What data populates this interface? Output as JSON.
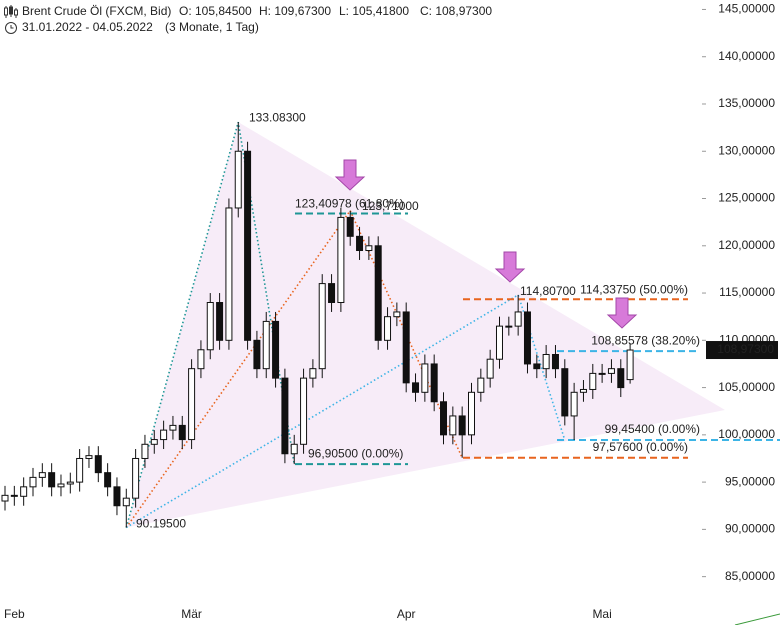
{
  "chart_data": {
    "type": "candlestick",
    "title": "Brent Crude Öl (FXCM, Bid)",
    "ohlc_header": [
      "O: 105,84500",
      "H: 109,67300",
      "L: 105,41800",
      "C: 108,97300"
    ],
    "date_range": "31.01.2022 - 04.05.2022",
    "period": "(3 Monate, 1 Tag)",
    "categories": [
      null,
      "Feb",
      null,
      null,
      null,
      null,
      null,
      null,
      null,
      null,
      null,
      null,
      null,
      null,
      null,
      null,
      null,
      null,
      null,
      null,
      "Mär",
      null,
      null,
      null,
      null,
      null,
      null,
      null,
      null,
      null,
      null,
      null,
      null,
      null,
      null,
      null,
      null,
      null,
      null,
      null,
      null,
      null,
      null,
      "Apr",
      null,
      null,
      null,
      null,
      null,
      null,
      null,
      null,
      null,
      null,
      null,
      null,
      null,
      null,
      null,
      null,
      null,
      null,
      null,
      null,
      "Mai",
      null,
      null,
      null
    ],
    "open": [
      93.0,
      93.6,
      93.5,
      94.5,
      95.5,
      96,
      94.5,
      94.8,
      95,
      97.5,
      97.8,
      96,
      94.5,
      92.5,
      93.3,
      97.5,
      99,
      99.5,
      100.5,
      101,
      99.5,
      107,
      109,
      114,
      110,
      124,
      130,
      110,
      107,
      112,
      106,
      98,
      99,
      106,
      107,
      116,
      114,
      123,
      121,
      119.5,
      120,
      110,
      112.5,
      113,
      105.5,
      104.5,
      107.5,
      103.5,
      100,
      102,
      100,
      104.5,
      106,
      108,
      111.5,
      111.5,
      113,
      107.5,
      107,
      108.5,
      107,
      102,
      104.5,
      104.8,
      106.5,
      106.5,
      107,
      105.845
    ],
    "high": [
      94.6,
      94.6,
      95.5,
      96.5,
      97,
      97,
      95.8,
      96,
      98.5,
      98.8,
      98.8,
      97,
      95.5,
      94.3,
      98.5,
      100,
      100.5,
      101.5,
      102,
      102,
      108,
      110,
      115,
      115,
      125,
      133.083,
      131,
      111,
      113,
      113,
      107,
      100,
      107,
      108,
      117,
      117,
      124,
      123.71,
      122,
      121,
      121,
      113.5,
      114,
      114,
      106.5,
      108.5,
      108.5,
      104.5,
      103,
      103,
      105.5,
      107,
      109,
      112.5,
      112.5,
      114.807,
      114,
      108.5,
      109.5,
      109.5,
      108,
      105.5,
      105.8,
      107.5,
      107.5,
      108,
      108,
      109.673
    ],
    "low": [
      92,
      92.5,
      92.5,
      93.5,
      94.5,
      93.5,
      93.5,
      93.8,
      94,
      96.5,
      95,
      93.5,
      91.5,
      90.195,
      92.3,
      96.5,
      98,
      98.5,
      99.5,
      98.5,
      98.5,
      106,
      108,
      109,
      109,
      123,
      109,
      106,
      106,
      105,
      97,
      96.905,
      98,
      105,
      106,
      113,
      113,
      120,
      118.5,
      118.5,
      109,
      109,
      111.5,
      104.5,
      103.5,
      103.5,
      102.5,
      99,
      99,
      97.576,
      99,
      103.5,
      105,
      107,
      110.5,
      110.5,
      106.5,
      106,
      106,
      106,
      101,
      99.454,
      103.5,
      103.8,
      105.5,
      105.5,
      104,
      105.418
    ],
    "close": [
      93.6,
      93.5,
      94.5,
      95.5,
      96,
      94.5,
      94.8,
      95,
      97.5,
      97.8,
      96,
      94.5,
      92.5,
      93.3,
      97.5,
      99,
      99.5,
      100.5,
      101,
      99.5,
      107,
      109,
      114,
      110,
      124,
      130,
      110,
      107,
      112,
      106,
      98,
      99,
      106,
      107,
      116,
      114,
      123,
      121,
      119.5,
      120,
      110,
      112.5,
      113,
      105.5,
      104.5,
      107.5,
      103.5,
      100,
      102,
      100,
      104.5,
      106,
      108,
      111.5,
      111.5,
      113,
      107.5,
      107,
      108.5,
      107,
      102,
      104.5,
      104.8,
      106.5,
      106.5,
      107,
      105,
      108.973
    ],
    "last_label": "108,97300",
    "up_color": "#ffffff",
    "down_color": "#111111",
    "ylim": [
      82,
      146
    ],
    "yticks": [
      {
        "value": 85,
        "label": "85,00000"
      },
      {
        "value": 90,
        "label": "90,00000"
      },
      {
        "value": 95,
        "label": "95,00000"
      },
      {
        "value": 100,
        "label": "100,00000"
      },
      {
        "value": 105,
        "label": "105,00000"
      },
      {
        "value": 110,
        "label": "110,00000"
      },
      {
        "value": 115,
        "label": "115,00000"
      },
      {
        "value": 120,
        "label": "120,00000"
      },
      {
        "value": 125,
        "label": "125,00000"
      },
      {
        "value": 130,
        "label": "130,00000"
      },
      {
        "value": 135,
        "label": "135,00000"
      },
      {
        "value": 140,
        "label": "140,00000"
      },
      {
        "value": 145,
        "label": "145,00000"
      }
    ],
    "annotations": [
      {
        "text": "133.08300",
        "value": 133.083,
        "color": "#1e9696"
      },
      {
        "text": "90.19500",
        "value": 90.195,
        "color": "#1e9696"
      },
      {
        "text": "123,40978 (61,80%)",
        "value": 123.40978,
        "color": "#1e9696"
      },
      {
        "text": "123,71000",
        "value": 123.71,
        "color": "#e8641e"
      },
      {
        "text": "114,33750 (50.00%)",
        "value": 114.3375,
        "color": "#e8641e"
      },
      {
        "text": "114,80700",
        "value": 114.807,
        "color": "#3cb4e6"
      },
      {
        "text": "108,85578 (38.20%)",
        "value": 108.85578,
        "color": "#3cb4e6"
      },
      {
        "text": "99,45400 (0.00%)",
        "value": 99.454,
        "color": "#3cb4e6"
      },
      {
        "text": "97,57600 (0.00%)",
        "value": 97.576,
        "color": "#e8641e"
      },
      {
        "text": "96,90500 (0.00%)",
        "value": 96.905,
        "color": "#1e9696"
      }
    ],
    "trendlines": [
      {
        "color": "#1e9696",
        "values": [
          90.195,
          133.083,
          96.905
        ]
      },
      {
        "color": "#e8641e",
        "values": [
          90.195,
          123.71,
          97.576
        ]
      },
      {
        "color": "#3cb4e6",
        "values": [
          90.195,
          114.807,
          99.454
        ]
      }
    ]
  }
}
